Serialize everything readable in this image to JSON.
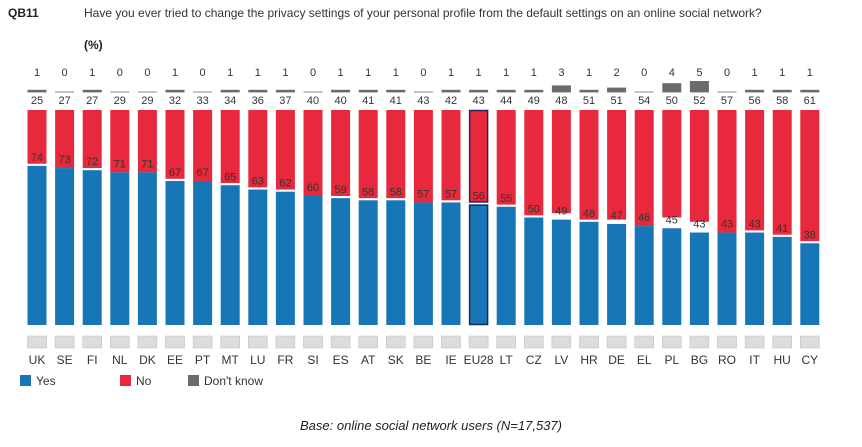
{
  "question": {
    "code": "QB11",
    "text": "Have you ever tried to change the privacy settings of your personal profile from the default settings on an online social network?",
    "unit": "(%)"
  },
  "base_note": "Base: online social network users (N=17,537)",
  "colors": {
    "yes": "#1776b6",
    "no": "#e8283c",
    "dont_know": "#6b6b6b",
    "highlight_border": "#1c2b5a"
  },
  "chart_data": {
    "type": "bar",
    "stacked": true,
    "orientation": "vertical",
    "categories": [
      "UK",
      "SE",
      "FI",
      "NL",
      "DK",
      "EE",
      "PT",
      "MT",
      "LU",
      "FR",
      "SI",
      "ES",
      "AT",
      "SK",
      "BE",
      "IE",
      "EU28",
      "LT",
      "CZ",
      "LV",
      "HR",
      "DE",
      "EL",
      "PL",
      "BG",
      "RO",
      "IT",
      "HU",
      "CY"
    ],
    "highlight_category": "EU28",
    "ylim": [
      0,
      100
    ],
    "series": [
      {
        "name": "Yes",
        "color": "#1776b6",
        "values": [
          74,
          73,
          72,
          71,
          71,
          67,
          67,
          65,
          63,
          62,
          60,
          59,
          58,
          58,
          57,
          57,
          56,
          55,
          50,
          49,
          48,
          47,
          46,
          45,
          43,
          43,
          43,
          41,
          38
        ]
      },
      {
        "name": "No",
        "color": "#e8283c",
        "values": [
          25,
          27,
          27,
          29,
          29,
          32,
          33,
          34,
          36,
          37,
          40,
          40,
          41,
          41,
          43,
          42,
          43,
          44,
          49,
          48,
          51,
          51,
          54,
          50,
          52,
          57,
          56,
          58,
          61
        ]
      },
      {
        "name": "Don't know",
        "color": "#6b6b6b",
        "values": [
          1,
          0,
          1,
          0,
          0,
          1,
          0,
          1,
          1,
          1,
          0,
          1,
          1,
          1,
          0,
          1,
          1,
          1,
          1,
          3,
          1,
          2,
          0,
          4,
          5,
          0,
          1,
          1,
          1
        ]
      }
    ],
    "legend_position": "bottom-left",
    "grid": false
  }
}
